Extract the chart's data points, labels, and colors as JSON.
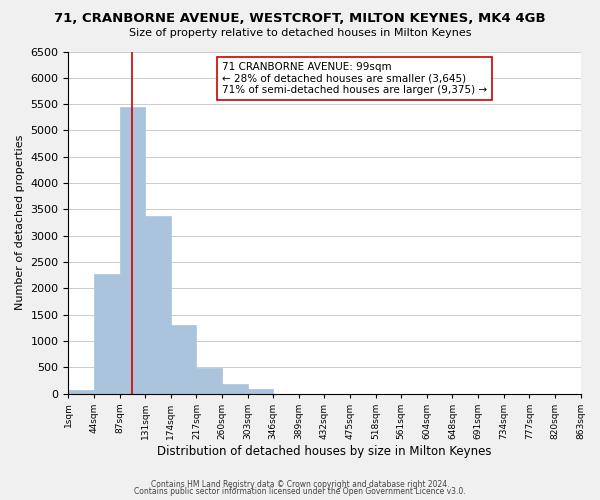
{
  "title": "71, CRANBORNE AVENUE, WESTCROFT, MILTON KEYNES, MK4 4GB",
  "subtitle": "Size of property relative to detached houses in Milton Keynes",
  "xlabel": "Distribution of detached houses by size in Milton Keynes",
  "ylabel": "Number of detached properties",
  "bar_values": [
    75,
    2275,
    5450,
    3380,
    1310,
    480,
    185,
    80,
    0,
    0,
    0,
    0,
    0,
    0,
    0,
    0,
    0,
    0,
    0,
    0
  ],
  "bar_color": "#aac4de",
  "tick_labels": [
    "1sqm",
    "44sqm",
    "87sqm",
    "131sqm",
    "174sqm",
    "217sqm",
    "260sqm",
    "303sqm",
    "346sqm",
    "389sqm",
    "432sqm",
    "475sqm",
    "518sqm",
    "561sqm",
    "604sqm",
    "648sqm",
    "691sqm",
    "734sqm",
    "777sqm",
    "820sqm",
    "863sqm"
  ],
  "ylim": [
    0,
    6500
  ],
  "yticks": [
    0,
    500,
    1000,
    1500,
    2000,
    2500,
    3000,
    3500,
    4000,
    4500,
    5000,
    5500,
    6000,
    6500
  ],
  "vline_x": 2.0,
  "vline_color": "#cc0000",
  "annotation_title": "71 CRANBORNE AVENUE: 99sqm",
  "annotation_line1": "← 28% of detached houses are smaller (3,645)",
  "annotation_line2": "71% of semi-detached houses are larger (9,375) →",
  "footer1": "Contains HM Land Registry data © Crown copyright and database right 2024.",
  "footer2": "Contains public sector information licensed under the Open Government Licence v3.0.",
  "background_color": "#f0f0f0",
  "plot_bg_color": "#ffffff",
  "grid_color": "#cccccc"
}
